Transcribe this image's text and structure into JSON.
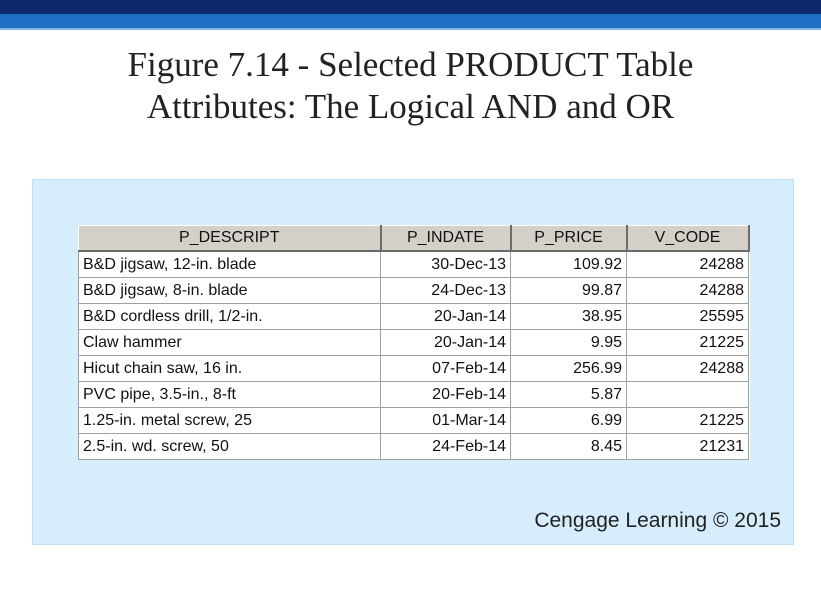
{
  "title": {
    "line1": "Figure 7.14 - Selected PRODUCT Table",
    "line2": "Attributes: The Logical AND and OR"
  },
  "table": {
    "columns": [
      "P_DESCRIPT",
      "P_INDATE",
      "P_PRICE",
      "V_CODE"
    ],
    "rows": [
      [
        "B&D jigsaw, 12-in. blade",
        "30-Dec-13",
        "109.92",
        "24288"
      ],
      [
        "B&D jigsaw, 8-in. blade",
        "24-Dec-13",
        "99.87",
        "24288"
      ],
      [
        "B&D cordless drill, 1/2-in.",
        "20-Jan-14",
        "38.95",
        "25595"
      ],
      [
        "Claw hammer",
        "20-Jan-14",
        "9.95",
        "21225"
      ],
      [
        "Hicut chain saw, 16 in.",
        "07-Feb-14",
        "256.99",
        "24288"
      ],
      [
        "PVC pipe, 3.5-in., 8-ft",
        "20-Feb-14",
        "5.87",
        ""
      ],
      [
        "1.25-in. metal screw, 25",
        "01-Mar-14",
        "6.99",
        "21225"
      ],
      [
        "2.5-in. wd. screw, 50",
        "24-Feb-14",
        "8.45",
        "21231"
      ]
    ]
  },
  "credit": "Cengage Learning © 2015",
  "colors": {
    "header_band_dark": "#0d2a6b",
    "header_band_light": "#1d6fc4",
    "panel_background": "#d6eefb",
    "table_header_background": "#d4d0c8"
  }
}
